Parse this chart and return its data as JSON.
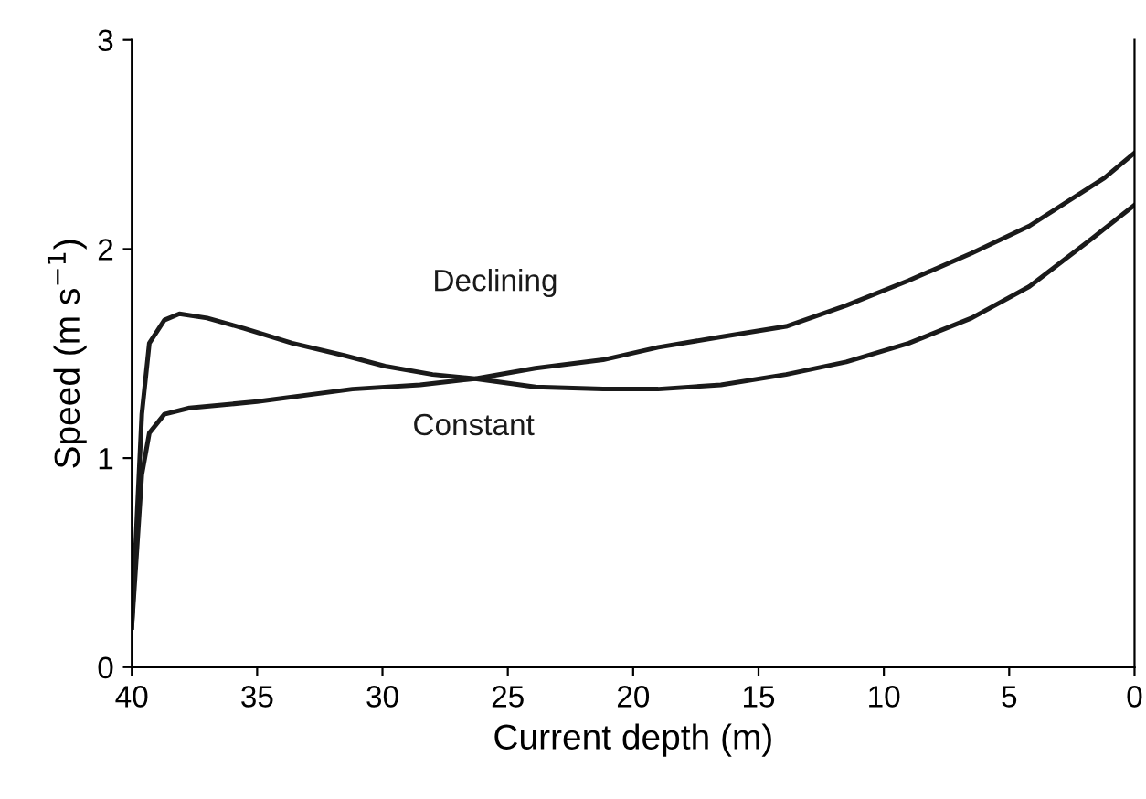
{
  "chart_data": {
    "type": "line",
    "xlabel": "Current depth (m)",
    "ylabel": "Speed (m s$^{−1}$)",
    "xlim": [
      40,
      0
    ],
    "xticks": [
      40,
      35,
      30,
      25,
      20,
      15,
      10,
      5,
      0
    ],
    "ylim": [
      0,
      3
    ],
    "yticks": [
      0,
      1,
      2,
      3
    ],
    "grid": false,
    "legend": false,
    "marker": "none",
    "line_style": "solid",
    "series": [
      {
        "name": "Declining",
        "color": "#1a1a1a",
        "x": [
          40,
          39.6,
          39.3,
          38.7,
          38.1,
          37,
          35.5,
          33.6,
          31.5,
          29.9,
          28,
          26.3,
          23.9,
          21.2,
          19.0,
          16.5,
          13.9,
          11.5,
          9.0,
          6.5,
          4.2,
          1.7,
          0
        ],
        "values": [
          0.19,
          1.21,
          1.55,
          1.66,
          1.69,
          1.67,
          1.62,
          1.55,
          1.49,
          1.44,
          1.4,
          1.38,
          1.34,
          1.33,
          1.33,
          1.35,
          1.4,
          1.46,
          1.55,
          1.67,
          1.82,
          2.05,
          2.21
        ]
      },
      {
        "name": "Constant",
        "color": "#1a1a1a",
        "x": [
          40,
          39.6,
          39.3,
          38.7,
          37.7,
          35,
          31.2,
          28.5,
          26.3,
          23.9,
          21.2,
          19.0,
          16.5,
          13.9,
          11.5,
          9.0,
          6.5,
          4.2,
          1.2,
          0
        ],
        "values": [
          0.19,
          0.92,
          1.12,
          1.21,
          1.24,
          1.27,
          1.33,
          1.35,
          1.38,
          1.43,
          1.47,
          1.53,
          1.58,
          1.63,
          1.73,
          1.85,
          1.98,
          2.11,
          2.34,
          2.46
        ]
      }
    ]
  }
}
